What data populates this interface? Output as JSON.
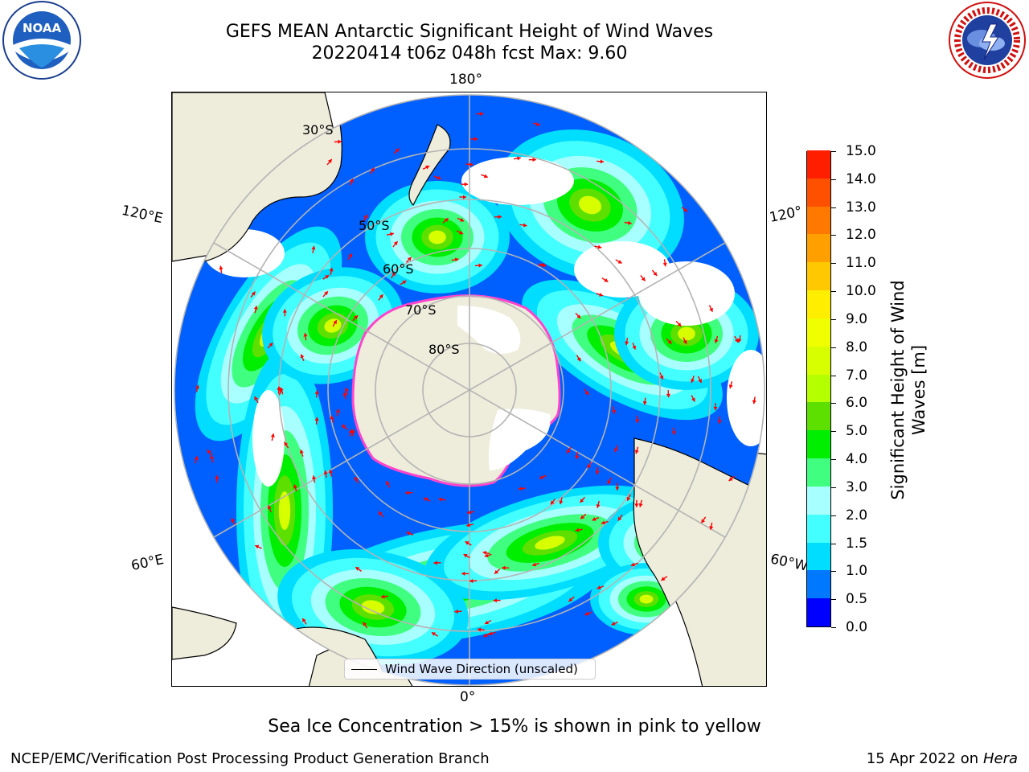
{
  "header": {
    "title_line1": "GEFS MEAN Antarctic Significant Height of Wind Waves",
    "title_line2": "20220414 t06z 048h fcst   Max: 9.60"
  },
  "logos": {
    "left_text": "NOAA",
    "left_ring_text": "NATIONAL OCEANIC AND ATMOSPHERIC ADMINISTRATION · U.S. DEPARTMENT OF COMMERCE",
    "right_ring_text": "NATIONAL WEATHER SERVICE"
  },
  "map": {
    "projection": "south-polar-stereographic",
    "lon_labels": {
      "top": "180°",
      "bottom": "0°",
      "upper_left": "120°E",
      "upper_right": "120°",
      "lower_left": "60°E",
      "lower_right": "60°W"
    },
    "lat_labels": [
      "30°S",
      "50°S",
      "60°S",
      "70°S",
      "80°S"
    ],
    "legend_label": "Wind Wave Direction (unscaled)",
    "colors": {
      "land": "#eeecdb",
      "sea_ice_edge": "#ff44cc",
      "arrow": "#ff0000",
      "graticule": "#b4b4b4"
    }
  },
  "colorbar": {
    "label": "Significant Height of Wind Waves [m]",
    "ticks": [
      "0.0",
      "0.5",
      "1.0",
      "1.5",
      "2.0",
      "3.0",
      "4.0",
      "5.0",
      "6.0",
      "7.0",
      "8.0",
      "9.0",
      "10.0",
      "11.0",
      "12.0",
      "13.0",
      "14.0",
      "15.0"
    ],
    "colors": [
      "#0000ff",
      "#0078ff",
      "#00ddff",
      "#44ffff",
      "#a8ffff",
      "#40ff80",
      "#00ee00",
      "#5de000",
      "#b4ff00",
      "#d8ff00",
      "#f0ff00",
      "#ffee00",
      "#ffc800",
      "#ffa000",
      "#ff7800",
      "#ff5000",
      "#ff1e00"
    ]
  },
  "notes": {
    "sea_ice": "Sea Ice Concentration > 15% is shown in pink to yellow",
    "footer_left": "NCEP/EMC/Verification Post Processing Product Generation Branch",
    "footer_right_prefix": "15 Apr 2022 on ",
    "footer_right_machine": "Hera"
  }
}
